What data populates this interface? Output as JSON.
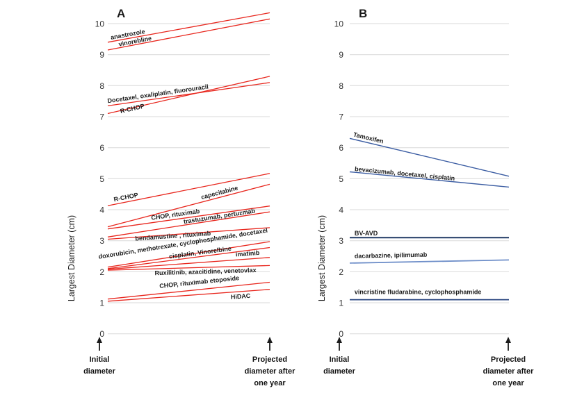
{
  "figure": {
    "background": "#ffffff",
    "grid_color": "#d9d9d9",
    "arrow_color": "#1a1a1a"
  },
  "chart_data": [
    {
      "type": "line",
      "panel": "A",
      "title": "A",
      "ylabel": "Largest Diameter (cm)",
      "ylim": [
        0,
        10
      ],
      "yticks": [
        0,
        1,
        2,
        3,
        4,
        5,
        6,
        7,
        8,
        9,
        10
      ],
      "grid": true,
      "legend": "none",
      "line_color": "#e8261d",
      "x": [
        "Initial diameter",
        "Projected diameter after one year"
      ],
      "x_labels": [
        [
          "Initial",
          "diameter"
        ],
        [
          "Projected",
          "diameter after",
          "one year"
        ]
      ],
      "series": [
        {
          "name": "anastrozole",
          "values": [
            9.4,
            10.35
          ],
          "label_frac": 0.02,
          "label_dy": -3
        },
        {
          "name": "vinorebline",
          "values": [
            9.15,
            10.15
          ],
          "label_frac": 0.07,
          "label_dy": -2
        },
        {
          "name": "Docetaxel, oxaliplatin, fluorouracil",
          "values": [
            7.35,
            8.1
          ],
          "label_frac": 0.0,
          "label_dy": -4
        },
        {
          "name": "R-CHOP",
          "values": [
            7.1,
            8.3
          ],
          "label_frac": 0.08,
          "label_dy": 4
        },
        {
          "name": "R-CHOP",
          "values": [
            4.13,
            5.17
          ],
          "label_frac": 0.04,
          "label_dy": -4
        },
        {
          "name": "capecitabine",
          "values": [
            3.45,
            4.82
          ],
          "label_frac": 0.58,
          "label_dy": -4
        },
        {
          "name": "CHOP, rituximab",
          "values": [
            3.38,
            4.12
          ],
          "label_frac": 0.27,
          "label_dy": -4
        },
        {
          "name": "trastuzumab, pertuzmab",
          "values": [
            3.12,
            3.93
          ],
          "label_frac": 0.47,
          "label_dy": -2
        },
        {
          "name": "bendamustine , rituximab",
          "values": [
            3.05,
            3.42
          ],
          "label_frac": 0.17,
          "label_dy": 5
        },
        {
          "name": "doxorubicin, methotrexate, cyclophosphamide, docetaxel",
          "values": [
            2.15,
            2.97
          ],
          "label_frac": -0.055,
          "label_dy": -14
        },
        {
          "name": "cisplatin, Vinorelbine",
          "values": [
            2.1,
            2.78
          ],
          "label_frac": 0.38,
          "label_dy": -3
        },
        {
          "name": "imatinib",
          "values": [
            2.08,
            2.46
          ],
          "label_frac": 0.79,
          "label_dy": -5
        },
        {
          "name": "Ruxilitinib, azacitidine, venetovlax",
          "values": [
            2.05,
            2.2
          ],
          "label_frac": 0.29,
          "label_dy": 9
        },
        {
          "name": "CHOP, rituximab etoposide",
          "values": [
            1.12,
            1.66
          ],
          "label_frac": 0.32,
          "label_dy": -8
        },
        {
          "name": "HiDAC",
          "values": [
            1.05,
            1.43
          ],
          "label_frac": 0.76,
          "label_dy": 10
        }
      ]
    },
    {
      "type": "line",
      "panel": "B",
      "title": "B",
      "ylabel": "Largest Diameter (cm)",
      "ylim": [
        0,
        10
      ],
      "yticks": [
        0,
        1,
        2,
        3,
        4,
        5,
        6,
        7,
        8,
        9,
        10
      ],
      "grid": true,
      "legend": "none",
      "line_color": "#2f5597",
      "x": [
        "Initial diameter",
        "Projected diameter after one year"
      ],
      "x_labels": [
        [
          "Initial",
          "diameter"
        ],
        [
          "Projected",
          "diameter after",
          "one year"
        ]
      ],
      "series": [
        {
          "name": "Tamoxifen",
          "values": [
            6.3,
            5.08
          ],
          "label_frac": 0.02,
          "label_dy": -4,
          "color": "#3a5ca2",
          "width": 1.4
        },
        {
          "name": "bevacizumab, docetaxel, cisplatin",
          "values": [
            5.22,
            4.73
          ],
          "label_frac": 0.03,
          "label_dy": -2,
          "color": "#3a5ca2",
          "width": 1.4
        },
        {
          "name": "BV-AVD",
          "values": [
            3.1,
            3.1
          ],
          "label_frac": 0.03,
          "label_dy": -3,
          "color": "#1f3864",
          "width": 2
        },
        {
          "name": "dacarbazine, ipilimumab",
          "values": [
            2.28,
            2.38
          ],
          "label_frac": 0.03,
          "label_dy": -7,
          "color": "#6f8fc9",
          "width": 1.8
        },
        {
          "name": "vincristine fludarabine, cyclophosphamide",
          "values": [
            1.1,
            1.1
          ],
          "label_frac": 0.03,
          "label_dy": -8,
          "color": "#2a4680",
          "width": 1.8
        }
      ]
    }
  ]
}
